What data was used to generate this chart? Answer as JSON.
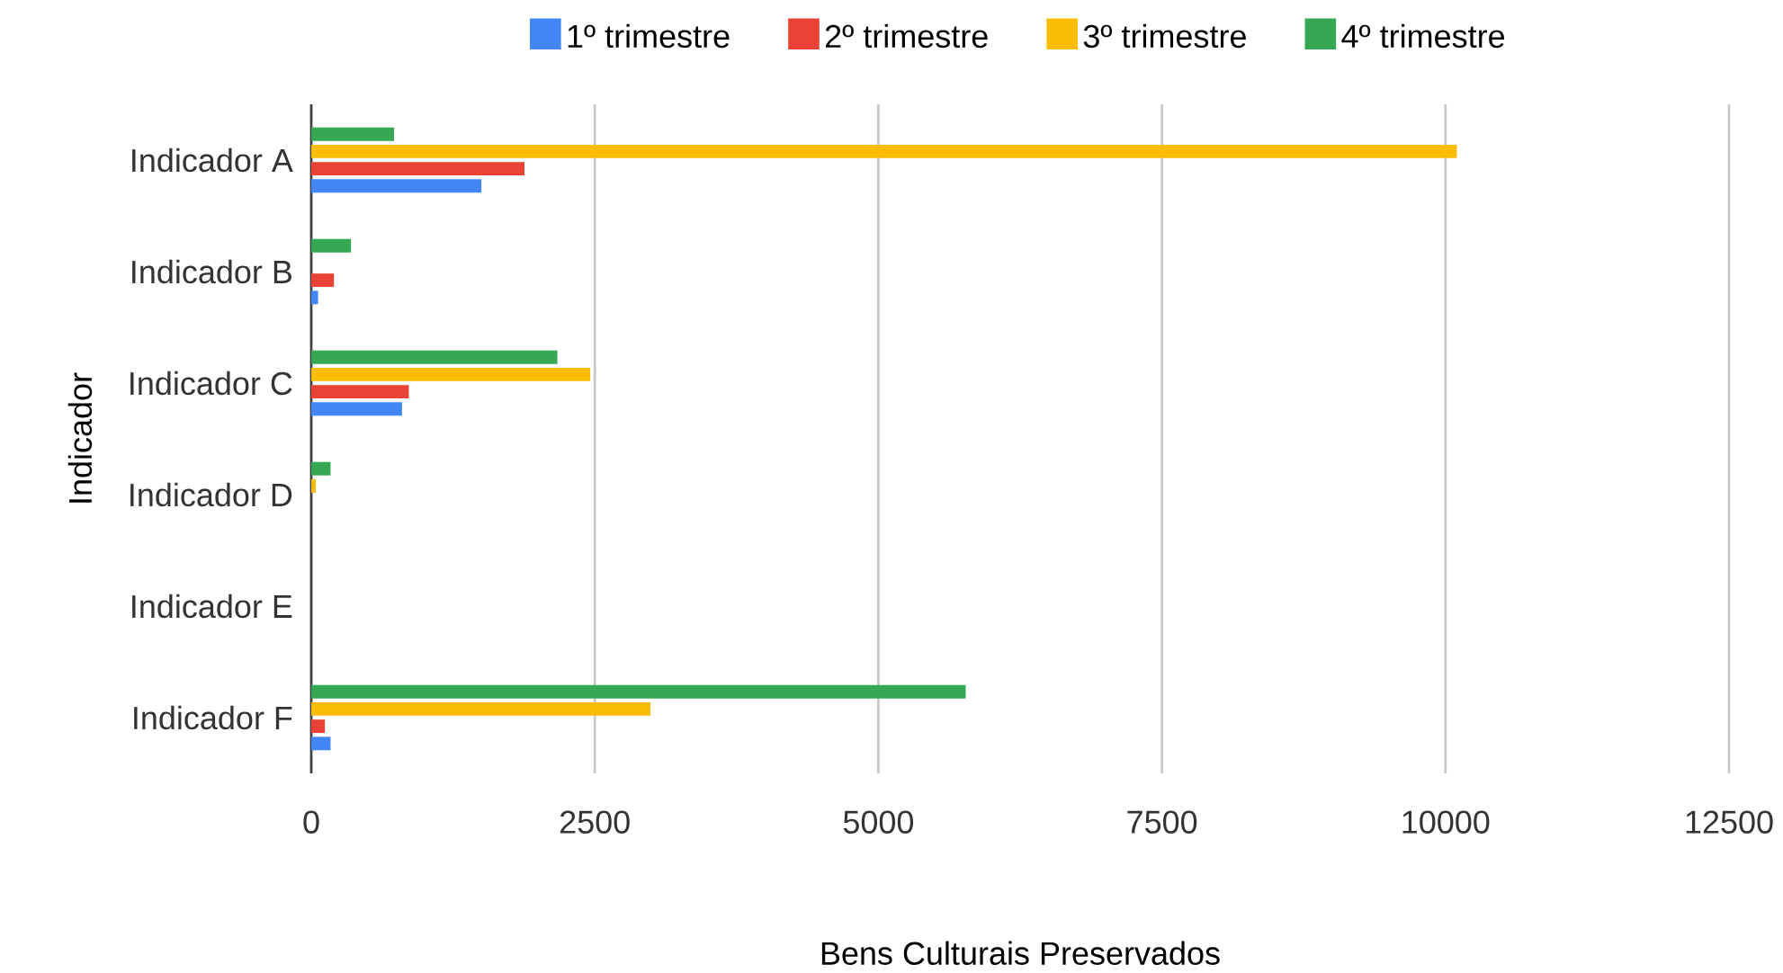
{
  "chart_data": {
    "type": "bar",
    "orientation": "horizontal",
    "xlabel": "Bens Culturais Preservados",
    "ylabel": "Indicador",
    "categories": [
      "Indicador A",
      "Indicador B",
      "Indicador C",
      "Indicador D",
      "Indicador E",
      "Indicador F"
    ],
    "series": [
      {
        "name": "1º trimestre",
        "color": "#4285f4",
        "values": [
          1500,
          60,
          800,
          null,
          null,
          170
        ]
      },
      {
        "name": "2º trimestre",
        "color": "#ea4335",
        "values": [
          1880,
          200,
          860,
          null,
          null,
          120
        ]
      },
      {
        "name": "3º trimestre",
        "color": "#fbbc04",
        "values": [
          10100,
          null,
          2460,
          40,
          null,
          2990
        ]
      },
      {
        "name": "4º trimestre",
        "color": "#34a853",
        "values": [
          730,
          350,
          2170,
          170,
          null,
          5770
        ]
      }
    ],
    "xlim": [
      0,
      12500
    ],
    "xticks": [
      0,
      2500,
      5000,
      7500,
      10000,
      12500
    ],
    "grid": "x",
    "legend": "top"
  }
}
